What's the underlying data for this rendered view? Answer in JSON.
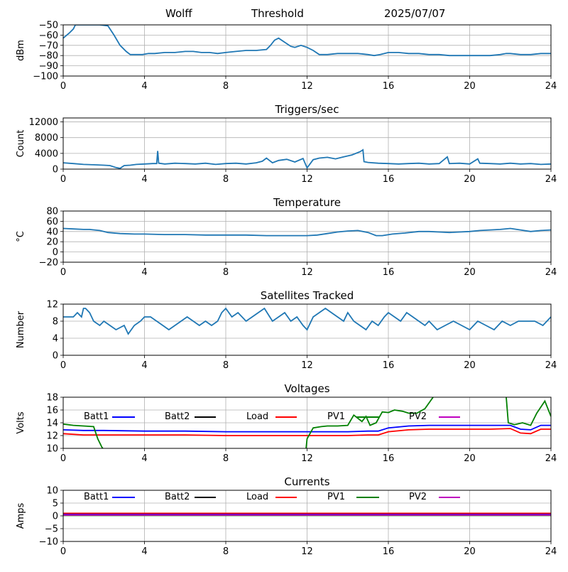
{
  "header": {
    "left": "Wolff",
    "center": "Threshold",
    "right": "2025/07/07"
  },
  "colors": {
    "line": "#1f77b4",
    "grid": "#b0b0b0",
    "batt1": "#0000ff",
    "batt2": "#000000",
    "load": "#ff0000",
    "pv1": "#008000",
    "pv2": "#bf00bf"
  },
  "chart_data": [
    {
      "type": "line",
      "title": "",
      "xlabel": "",
      "ylabel": "dBm",
      "xlim": [
        0,
        24
      ],
      "ylim": [
        -100,
        -50
      ],
      "xticks": [
        "0",
        "4",
        "8",
        "12",
        "16",
        "20",
        "24"
      ],
      "yticks": [
        "−100",
        "−90",
        "−80",
        "−70",
        "−60",
        "−50"
      ],
      "grid": true,
      "series": [
        {
          "color": "#1f77b4",
          "x": [
            0,
            0.3,
            0.5,
            0.6,
            1.0,
            1.5,
            1.8,
            2.2,
            2.5,
            2.8,
            3.1,
            3.3,
            3.6,
            3.9,
            4.2,
            4.5,
            5.0,
            5.5,
            6.0,
            6.4,
            6.8,
            7.2,
            7.6,
            8.0,
            8.5,
            9.0,
            9.5,
            10.0,
            10.2,
            10.4,
            10.6,
            10.9,
            11.2,
            11.4,
            11.7,
            12.0,
            12.3,
            12.6,
            13.0,
            13.5,
            14.0,
            14.5,
            15.0,
            15.3,
            15.6,
            16.0,
            16.5,
            17.0,
            17.5,
            18.0,
            18.5,
            19.0,
            19.5,
            20.0,
            20.5,
            21.0,
            21.5,
            21.8,
            22.0,
            22.5,
            23.0,
            23.5,
            24.0
          ],
          "y": [
            -63,
            -58,
            -54,
            -50,
            -50,
            -50,
            -50,
            -51,
            -60,
            -70,
            -76,
            -79,
            -79,
            -79,
            -78,
            -78,
            -77,
            -77,
            -76,
            -76,
            -77,
            -77,
            -78,
            -77,
            -76,
            -75,
            -75,
            -74,
            -70,
            -65,
            -63,
            -67,
            -71,
            -72,
            -70,
            -72,
            -75,
            -79,
            -79,
            -78,
            -78,
            -78,
            -79,
            -80,
            -79,
            -77,
            -77,
            -78,
            -78,
            -79,
            -79,
            -80,
            -80,
            -80,
            -80,
            -80,
            -79,
            -78,
            -78,
            -79,
            -79,
            -78,
            -78
          ]
        }
      ]
    },
    {
      "type": "line",
      "title": "Triggers/sec",
      "xlabel": "",
      "ylabel": "Count",
      "xlim": [
        0,
        24
      ],
      "ylim": [
        0,
        13000
      ],
      "xticks": [
        "0",
        "4",
        "8",
        "12",
        "16",
        "20",
        "24"
      ],
      "ytick_values": [
        0,
        4000,
        8000,
        12000
      ],
      "yticks": [
        "0",
        "4000",
        "8000",
        "12000"
      ],
      "grid": true,
      "series": [
        {
          "color": "#1f77b4",
          "x": [
            0,
            0.5,
            1,
            1.5,
            2,
            2.3,
            2.6,
            2.8,
            3.0,
            3.3,
            3.6,
            4.0,
            4.4,
            4.6,
            4.65,
            4.7,
            5.0,
            5.5,
            6.0,
            6.5,
            7.0,
            7.5,
            8.0,
            8.5,
            9.0,
            9.5,
            9.8,
            10.0,
            10.3,
            10.6,
            11.0,
            11.4,
            11.8,
            12.0,
            12.3,
            12.6,
            13.0,
            13.4,
            13.8,
            14.2,
            14.6,
            14.75,
            14.8,
            15.0,
            15.5,
            16.0,
            16.5,
            17.0,
            17.5,
            18.0,
            18.5,
            18.9,
            19.0,
            19.5,
            20.0,
            20.4,
            20.5,
            21.0,
            21.5,
            22.0,
            22.5,
            23.0,
            23.5,
            24.0
          ],
          "y": [
            1600,
            1400,
            1200,
            1100,
            1000,
            900,
            400,
            200,
            900,
            1000,
            1200,
            1300,
            1400,
            1400,
            4600,
            1500,
            1300,
            1500,
            1400,
            1300,
            1500,
            1200,
            1400,
            1500,
            1300,
            1600,
            2000,
            2800,
            1600,
            2200,
            2500,
            1800,
            2700,
            300,
            2400,
            2800,
            3000,
            2600,
            3100,
            3600,
            4400,
            4900,
            1900,
            1700,
            1500,
            1400,
            1300,
            1400,
            1500,
            1300,
            1400,
            3100,
            1400,
            1500,
            1300,
            2600,
            1500,
            1400,
            1300,
            1500,
            1300,
            1400,
            1200,
            1300
          ]
        }
      ]
    },
    {
      "type": "line",
      "title": "Temperature",
      "xlabel": "",
      "ylabel": "°C",
      "xlim": [
        0,
        24
      ],
      "ylim": [
        -20,
        80
      ],
      "xticks": [
        "0",
        "4",
        "8",
        "12",
        "16",
        "20",
        "24"
      ],
      "ytick_values": [
        -20,
        0,
        20,
        40,
        60,
        80
      ],
      "yticks": [
        "−20",
        "0",
        "20",
        "40",
        "60",
        "80"
      ],
      "grid": true,
      "series": [
        {
          "color": "#1f77b4",
          "x": [
            0,
            0.5,
            1,
            1.3,
            1.8,
            2.2,
            2.8,
            3.5,
            4,
            5,
            6,
            7,
            8,
            9,
            10,
            11,
            12,
            12.5,
            13,
            13.5,
            14,
            14.5,
            15,
            15.4,
            15.7,
            16.2,
            16.8,
            17.5,
            18,
            18.5,
            19,
            19.5,
            20,
            20.5,
            21,
            21.5,
            22,
            22.5,
            23,
            23.5,
            24
          ],
          "y": [
            46,
            45,
            44,
            44,
            42,
            38,
            36,
            35,
            35,
            34,
            34,
            33,
            33,
            33,
            32,
            32,
            32,
            33,
            36,
            39,
            41,
            42,
            38,
            32,
            32,
            35,
            37,
            40,
            40,
            39,
            38,
            39,
            40,
            42,
            43,
            44,
            46,
            43,
            40,
            42,
            43
          ]
        }
      ]
    },
    {
      "type": "line",
      "title": "Satellites Tracked",
      "xlabel": "",
      "ylabel": "Number",
      "xlim": [
        0,
        24
      ],
      "ylim": [
        0,
        12
      ],
      "xticks": [
        "0",
        "4",
        "8",
        "12",
        "16",
        "20",
        "24"
      ],
      "ytick_values": [
        0,
        4,
        8,
        12
      ],
      "yticks": [
        "0",
        "4",
        "8",
        "12"
      ],
      "grid": true,
      "series": [
        {
          "color": "#1f77b4",
          "x": [
            0,
            0.5,
            0.7,
            0.9,
            1.0,
            1.1,
            1.3,
            1.5,
            1.8,
            2.0,
            2.3,
            2.6,
            3.0,
            3.2,
            3.5,
            3.8,
            4.0,
            4.3,
            4.6,
            4.9,
            5.2,
            5.5,
            5.8,
            6.1,
            6.4,
            6.7,
            7.0,
            7.3,
            7.6,
            7.8,
            8.0,
            8.3,
            8.6,
            9.0,
            9.3,
            9.6,
            9.9,
            10.3,
            10.6,
            10.9,
            11.2,
            11.5,
            11.8,
            12.0,
            12.3,
            12.6,
            12.9,
            13.2,
            13.5,
            13.8,
            14.0,
            14.3,
            14.6,
            14.9,
            15.2,
            15.5,
            15.8,
            16.0,
            16.3,
            16.6,
            16.9,
            17.2,
            17.5,
            17.8,
            18.0,
            18.4,
            18.8,
            19.2,
            19.6,
            20.0,
            20.4,
            20.8,
            21.2,
            21.6,
            22.0,
            22.4,
            22.8,
            23.2,
            23.6,
            24.0
          ],
          "y": [
            9,
            9,
            10,
            9,
            11,
            11,
            10,
            8,
            7,
            8,
            7,
            6,
            7,
            5,
            7,
            8,
            9,
            9,
            8,
            7,
            6,
            7,
            8,
            9,
            8,
            7,
            8,
            7,
            8,
            10,
            11,
            9,
            10,
            8,
            9,
            10,
            11,
            8,
            9,
            10,
            8,
            9,
            7,
            6,
            9,
            10,
            11,
            10,
            9,
            8,
            10,
            8,
            7,
            6,
            8,
            7,
            9,
            10,
            9,
            8,
            10,
            9,
            8,
            7,
            8,
            6,
            7,
            8,
            7,
            6,
            8,
            7,
            6,
            8,
            7,
            8,
            8,
            8,
            7,
            9
          ]
        }
      ]
    },
    {
      "type": "line",
      "title": "Voltages",
      "xlabel": "",
      "ylabel": "Volts",
      "xlim": [
        0,
        24
      ],
      "ylim": [
        10,
        18
      ],
      "xticks": [
        "0",
        "4",
        "8",
        "12",
        "16",
        "20",
        "24"
      ],
      "ytick_values": [
        10,
        12,
        14,
        16,
        18
      ],
      "yticks": [
        "10",
        "12",
        "14",
        "16",
        "18"
      ],
      "grid": true,
      "series": [
        {
          "name": "Batt1",
          "color": "#0000ff",
          "x": [
            0,
            1,
            2,
            4,
            6,
            8,
            10,
            12,
            13,
            14,
            15,
            15.5,
            16,
            17,
            18,
            19,
            20,
            21,
            22,
            22.5,
            23,
            23.5,
            24
          ],
          "y": [
            12.9,
            12.8,
            12.8,
            12.7,
            12.7,
            12.6,
            12.6,
            12.6,
            12.6,
            12.6,
            12.7,
            12.7,
            13.2,
            13.5,
            13.6,
            13.6,
            13.6,
            13.6,
            13.6,
            13.0,
            12.9,
            13.6,
            13.6
          ]
        },
        {
          "name": "Batt2",
          "color": "#000000",
          "x": [],
          "y": []
        },
        {
          "name": "Load",
          "color": "#ff0000",
          "x": [
            0,
            1,
            2,
            4,
            6,
            8,
            10,
            12,
            13,
            14,
            15,
            15.5,
            16,
            17,
            18,
            19,
            20,
            21,
            22,
            22.5,
            23,
            23.5,
            24
          ],
          "y": [
            12.3,
            12.1,
            12.1,
            12.1,
            12.1,
            12.0,
            12.0,
            12.0,
            12.0,
            12.0,
            12.1,
            12.1,
            12.6,
            12.9,
            13.0,
            13.0,
            13.0,
            13.0,
            13.1,
            12.4,
            12.3,
            13.0,
            13.0
          ]
        },
        {
          "name": "PV1",
          "color": "#008000",
          "x": [
            0,
            0.5,
            1.0,
            1.5,
            1.7,
            1.9,
            1.95,
            null,
            11.95,
            12.0,
            12.3,
            12.7,
            13.0,
            13.5,
            14.0,
            14.3,
            14.7,
            14.9,
            15.1,
            15.4,
            15.7,
            16.0,
            16.3,
            16.7,
            17.0,
            17.4,
            17.8,
            18.2,
            null,
            21.8,
            21.9,
            22.2,
            22.6,
            23.0,
            23.3,
            23.7,
            24.0
          ],
          "y": [
            13.8,
            13.6,
            13.5,
            13.4,
            11.5,
            10.2,
            10.0,
            null,
            10.0,
            11.5,
            13.2,
            13.4,
            13.5,
            13.5,
            13.6,
            15.2,
            14.2,
            15.0,
            13.6,
            14.0,
            15.7,
            15.6,
            16.0,
            15.8,
            15.5,
            15.5,
            16.2,
            18.0,
            null,
            18.0,
            14.0,
            13.7,
            14.0,
            13.6,
            15.5,
            17.4,
            15.0
          ]
        },
        {
          "name": "PV2",
          "color": "#bf00bf",
          "x": [],
          "y": []
        }
      ]
    },
    {
      "type": "line",
      "title": "Currents",
      "xlabel": "",
      "ylabel": "Amps",
      "xlim": [
        0,
        24
      ],
      "ylim": [
        -10,
        10
      ],
      "xticks": [
        "0",
        "4",
        "8",
        "12",
        "16",
        "20",
        "24"
      ],
      "ytick_values": [
        -10,
        -5,
        0,
        5,
        10
      ],
      "yticks": [
        "−10",
        "−5",
        "0",
        "5",
        "10"
      ],
      "grid": true,
      "series": [
        {
          "name": "Batt1",
          "color": "#0000ff",
          "x": [
            0,
            24
          ],
          "y": [
            0.6,
            0.6
          ]
        },
        {
          "name": "Batt2",
          "color": "#000000",
          "x": [],
          "y": []
        },
        {
          "name": "Load",
          "color": "#ff0000",
          "x": [
            0,
            24
          ],
          "y": [
            1.0,
            1.0
          ]
        },
        {
          "name": "PV1",
          "color": "#008000",
          "x": [
            0,
            24
          ],
          "y": [
            0.2,
            0.2
          ]
        },
        {
          "name": "PV2",
          "color": "#bf00bf",
          "x": [
            0,
            24
          ],
          "y": [
            0.3,
            0.3
          ]
        }
      ]
    }
  ]
}
